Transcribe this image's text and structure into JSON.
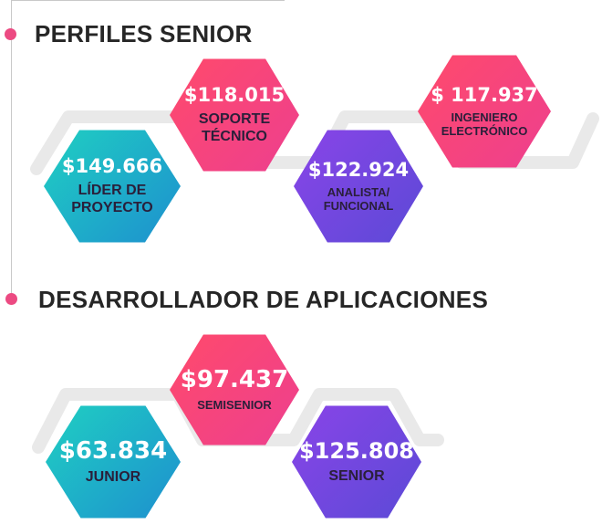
{
  "colors": {
    "accent_pink": "#ec4a82",
    "heading": "#262626",
    "track": "#e9e9e9"
  },
  "section_senior": {
    "title": "PERFILES  SENIOR",
    "cards": [
      {
        "amount": "$149.666",
        "label": "LÍDER DE\nPROYECTO",
        "color": "teal"
      },
      {
        "amount": "$118.015",
        "label": "SOPORTE\nTÉCNICO",
        "color": "pink"
      },
      {
        "amount": "$122.924",
        "label": "ANALISTA/\nFUNCIONAL",
        "color": "purple"
      },
      {
        "amount": "$ 117.937",
        "label": "INGENIERO\nELECTRÓNICO",
        "color": "pink"
      }
    ]
  },
  "section_dev": {
    "title": "DESARROLLADOR DE APLICACIONES",
    "cards": [
      {
        "amount": "$63.834",
        "label": "JUNIOR",
        "color": "teal"
      },
      {
        "amount": "$97.437",
        "label": "SEMISENIOR",
        "color": "pink"
      },
      {
        "amount": "$125.808",
        "label": "SENIOR",
        "color": "purple"
      }
    ]
  }
}
